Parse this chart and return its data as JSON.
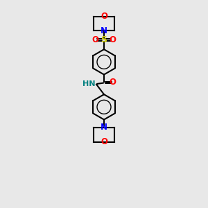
{
  "background_color": "#e8e8e8",
  "bond_color": "#000000",
  "atom_colors": {
    "O": "#ff0000",
    "N": "#0000ff",
    "S": "#cccc00",
    "H": "#008080",
    "C": "#000000"
  },
  "figsize": [
    3.0,
    3.0
  ],
  "dpi": 100,
  "xlim": [
    0,
    10
  ],
  "ylim": [
    0,
    17
  ]
}
